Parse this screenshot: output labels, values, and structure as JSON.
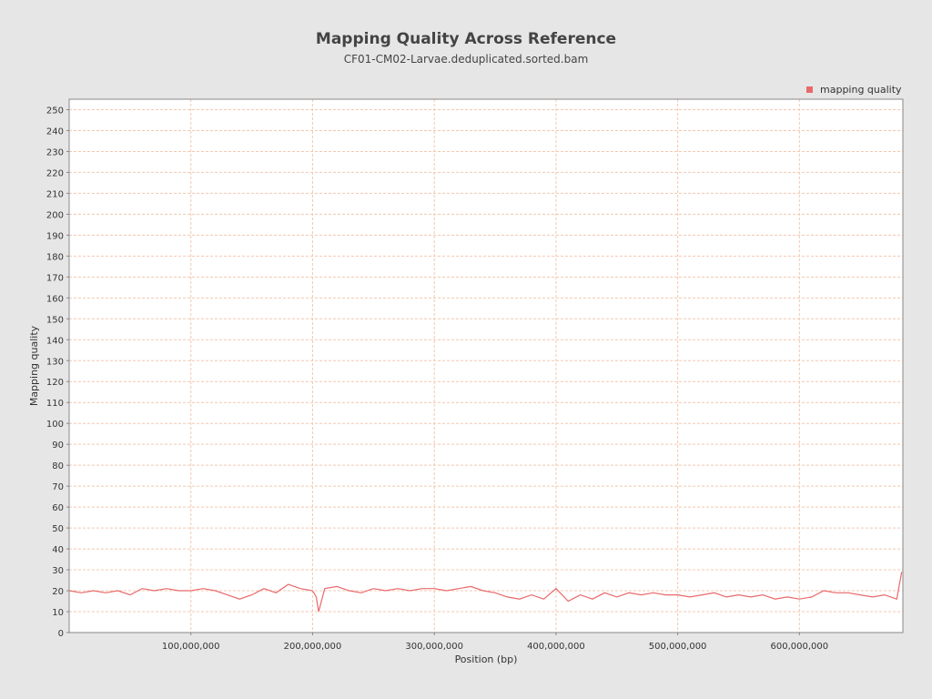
{
  "chart_data": {
    "type": "line",
    "title": "Mapping Quality Across Reference",
    "subtitle": "CF01-CM02-Larvae.deduplicated.sorted.bam",
    "xlabel": "Position (bp)",
    "ylabel": "Mapping quality",
    "xlim": [
      0,
      685000000
    ],
    "ylim": [
      0,
      255
    ],
    "x_ticks": [
      100000000,
      200000000,
      300000000,
      400000000,
      500000000,
      600000000
    ],
    "x_tick_labels": [
      "100,000,000",
      "200,000,000",
      "300,000,000",
      "400,000,000",
      "500,000,000",
      "600,000,000"
    ],
    "y_ticks": [
      0,
      10,
      20,
      30,
      40,
      50,
      60,
      70,
      80,
      90,
      100,
      110,
      120,
      130,
      140,
      150,
      160,
      170,
      180,
      190,
      200,
      210,
      220,
      230,
      240,
      250
    ],
    "y_tick_labels": [
      "0",
      "10",
      "20",
      "30",
      "40",
      "50",
      "60",
      "70",
      "80",
      "90",
      "100",
      "110",
      "120",
      "130",
      "140",
      "150",
      "160",
      "170",
      "180",
      "190",
      "200",
      "210",
      "220",
      "230",
      "240",
      "250"
    ],
    "grid": true,
    "legend_position": "top-right",
    "colors": {
      "series": "#e8696b",
      "grid": "#f4c8b0",
      "background": "#ffffff",
      "page": "#e6e6e6"
    },
    "series": [
      {
        "name": "mapping quality",
        "x": [
          0,
          10000000,
          20000000,
          30000000,
          40000000,
          50000000,
          60000000,
          70000000,
          80000000,
          90000000,
          100000000,
          110000000,
          120000000,
          130000000,
          140000000,
          150000000,
          160000000,
          170000000,
          180000000,
          190000000,
          200000000,
          203000000,
          205000000,
          210000000,
          220000000,
          230000000,
          240000000,
          250000000,
          260000000,
          270000000,
          280000000,
          290000000,
          300000000,
          310000000,
          320000000,
          330000000,
          340000000,
          350000000,
          360000000,
          370000000,
          380000000,
          390000000,
          400000000,
          410000000,
          420000000,
          430000000,
          440000000,
          450000000,
          460000000,
          470000000,
          480000000,
          490000000,
          500000000,
          510000000,
          520000000,
          530000000,
          540000000,
          550000000,
          560000000,
          570000000,
          580000000,
          590000000,
          600000000,
          610000000,
          620000000,
          630000000,
          640000000,
          650000000,
          660000000,
          670000000,
          680000000,
          684000000
        ],
        "values": [
          20,
          19,
          20,
          19,
          20,
          18,
          21,
          20,
          21,
          20,
          20,
          21,
          20,
          18,
          16,
          18,
          21,
          19,
          23,
          21,
          20,
          17,
          10,
          21,
          22,
          20,
          19,
          21,
          20,
          21,
          20,
          21,
          21,
          20,
          21,
          22,
          20,
          19,
          17,
          16,
          18,
          16,
          21,
          15,
          18,
          16,
          19,
          17,
          19,
          18,
          19,
          18,
          18,
          17,
          18,
          19,
          17,
          18,
          17,
          18,
          16,
          17,
          16,
          17,
          20,
          19,
          19,
          18,
          17,
          18,
          16,
          29
        ]
      }
    ]
  }
}
